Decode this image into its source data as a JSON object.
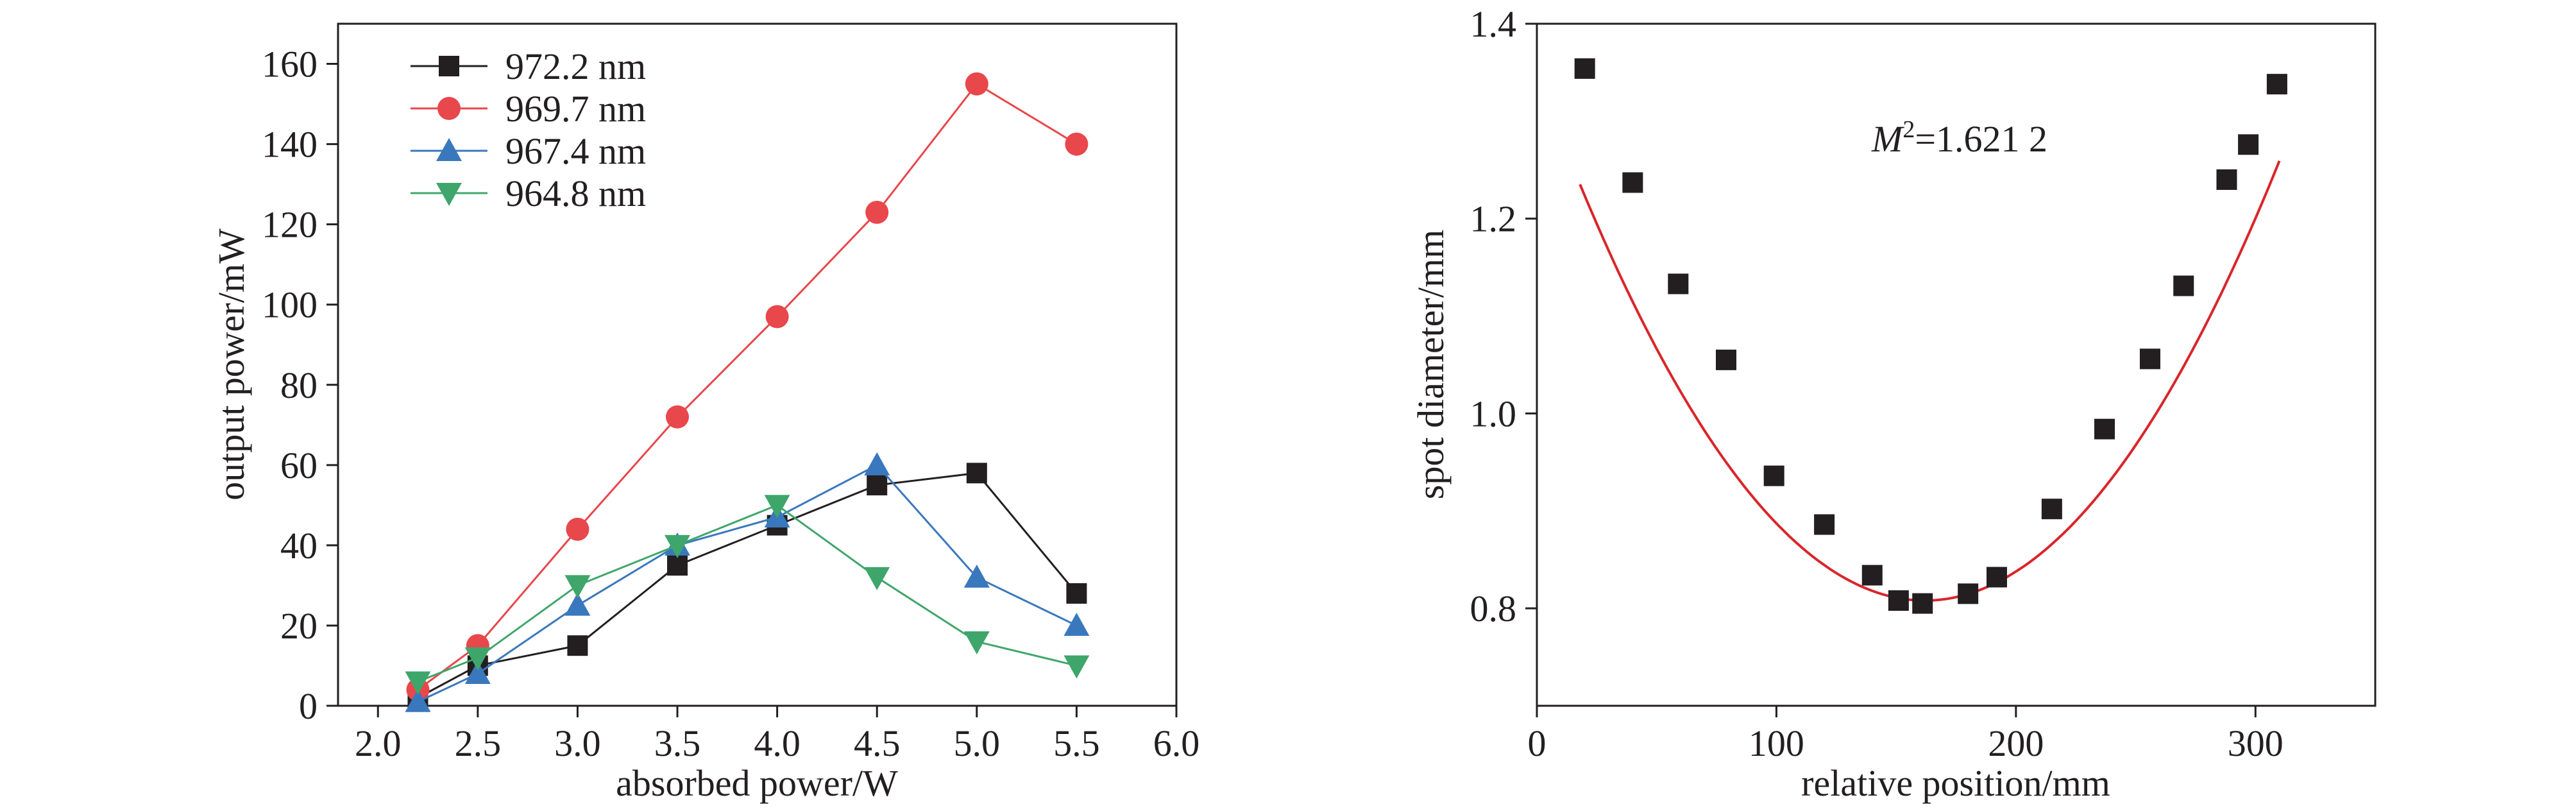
{
  "chart_data": [
    {
      "type": "line",
      "xlabel": "absorbed power/W",
      "ylabel": "output power/mW",
      "xlim": [
        1.8,
        6.0
      ],
      "ylim": [
        0,
        170
      ],
      "xticks": [
        2.0,
        2.5,
        3.0,
        3.5,
        4.0,
        4.5,
        5.0,
        5.5,
        6.0
      ],
      "xtick_labels": [
        "2.0",
        "2.5",
        "3.0",
        "3.5",
        "4.0",
        "4.5",
        "5.0",
        "5.5",
        "6.0"
      ],
      "yticks": [
        0,
        20,
        40,
        60,
        80,
        100,
        120,
        140,
        160
      ],
      "ytick_labels": [
        "0",
        "20",
        "40",
        "60",
        "80",
        "100",
        "120",
        "140",
        "160"
      ],
      "legend_position": "top-left",
      "grid": false,
      "series": [
        {
          "name": "972.2 nm",
          "color": "#231f20",
          "marker": "square",
          "x": [
            2.2,
            2.5,
            3.0,
            3.5,
            4.0,
            4.5,
            5.0,
            5.5
          ],
          "y": [
            2,
            10,
            15,
            35,
            45,
            55,
            58,
            28
          ]
        },
        {
          "name": "969.7 nm",
          "color": "#e8474c",
          "marker": "circle",
          "x": [
            2.2,
            2.5,
            3.0,
            3.5,
            4.0,
            4.5,
            5.0,
            5.5
          ],
          "y": [
            4,
            15,
            44,
            72,
            97,
            123,
            155,
            140
          ]
        },
        {
          "name": "967.4 nm",
          "color": "#3a78bd",
          "marker": "triangle-up",
          "x": [
            2.2,
            2.5,
            3.0,
            3.5,
            4.0,
            4.5,
            5.0,
            5.5
          ],
          "y": [
            1,
            8,
            25,
            40,
            47,
            60,
            32,
            20
          ]
        },
        {
          "name": "964.8 nm",
          "color": "#3fa66b",
          "marker": "triangle-down",
          "x": [
            2.2,
            2.5,
            3.0,
            3.5,
            4.0,
            4.5,
            5.0,
            5.5
          ],
          "y": [
            6,
            12,
            30,
            40,
            50,
            32,
            16,
            10
          ]
        }
      ]
    },
    {
      "type": "scatter",
      "xlabel": "relative position/mm",
      "ylabel": "spot diameter/mm",
      "xlim": [
        0,
        350
      ],
      "ylim": [
        0.7,
        1.4
      ],
      "xticks": [
        0,
        100,
        200,
        300
      ],
      "xtick_labels": [
        "0",
        "100",
        "200",
        "300"
      ],
      "yticks": [
        0.8,
        1.0,
        1.2,
        1.4
      ],
      "ytick_labels": [
        "0.8",
        "1.0",
        "1.2",
        "1.4"
      ],
      "grid": false,
      "annotation": {
        "italic": "M",
        "sup": "2",
        "rest": "=1.621 2"
      },
      "points_color": "#231f20",
      "fit_color": "#d9262b",
      "points": {
        "x": [
          20,
          40,
          59,
          79,
          99,
          120,
          140,
          151,
          161,
          180,
          192,
          215,
          237,
          256,
          270,
          288,
          297,
          309
        ],
        "y": [
          1.354,
          1.237,
          1.133,
          1.055,
          0.936,
          0.886,
          0.834,
          0.808,
          0.805,
          0.815,
          0.832,
          0.902,
          0.984,
          1.056,
          1.131,
          1.24,
          1.276,
          1.338
        ]
      },
      "fit": {
        "form": "quadratic",
        "a": 2.06e-05,
        "center": 162,
        "min": 0.808,
        "x_from": 18,
        "x_to": 310
      }
    }
  ]
}
